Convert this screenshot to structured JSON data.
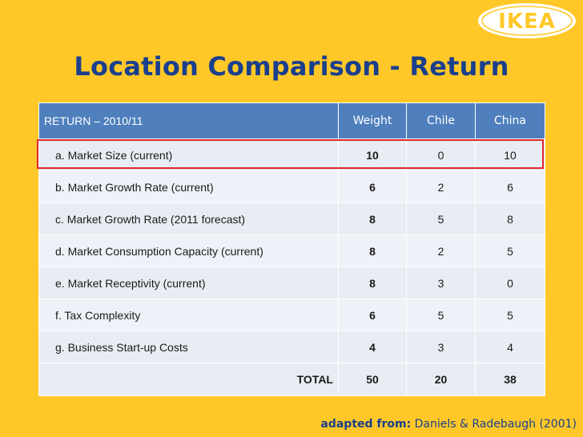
{
  "brand": {
    "logo_text": "IKEA",
    "logo_colors": {
      "oval": "#ffffff",
      "text": "#ffc828",
      "border": "#ffc828"
    }
  },
  "title": "Location Comparison - Return",
  "table": {
    "header": {
      "label": "RETURN – 2010/11",
      "columns": [
        "Weight",
        "Chile",
        "China"
      ]
    },
    "rows": [
      {
        "label": "a. Market Size (current)",
        "weight": "10",
        "chile": "0",
        "china": "10"
      },
      {
        "label": "b. Market Growth Rate (current)",
        "weight": "6",
        "chile": "2",
        "china": "6"
      },
      {
        "label": "c. Market Growth Rate (2011 forecast)",
        "weight": "8",
        "chile": "5",
        "china": "8"
      },
      {
        "label": "d. Market Consumption Capacity (current)",
        "weight": "8",
        "chile": "2",
        "china": "5"
      },
      {
        "label": "e. Market Receptivity (current)",
        "weight": "8",
        "chile": "3",
        "china": "0"
      },
      {
        "label": "f. Tax Complexity",
        "weight": "6",
        "chile": "5",
        "china": "5"
      },
      {
        "label": "g. Business Start-up Costs",
        "weight": "4",
        "chile": "3",
        "china": "4"
      }
    ],
    "total": {
      "label": "TOTAL",
      "weight": "50",
      "chile": "20",
      "china": "38"
    },
    "highlight_color": "#e1262c",
    "header_color": "#4f80bd"
  },
  "source": {
    "label": "adapted from:",
    "text": "Daniels & Radebaugh (2001)"
  }
}
